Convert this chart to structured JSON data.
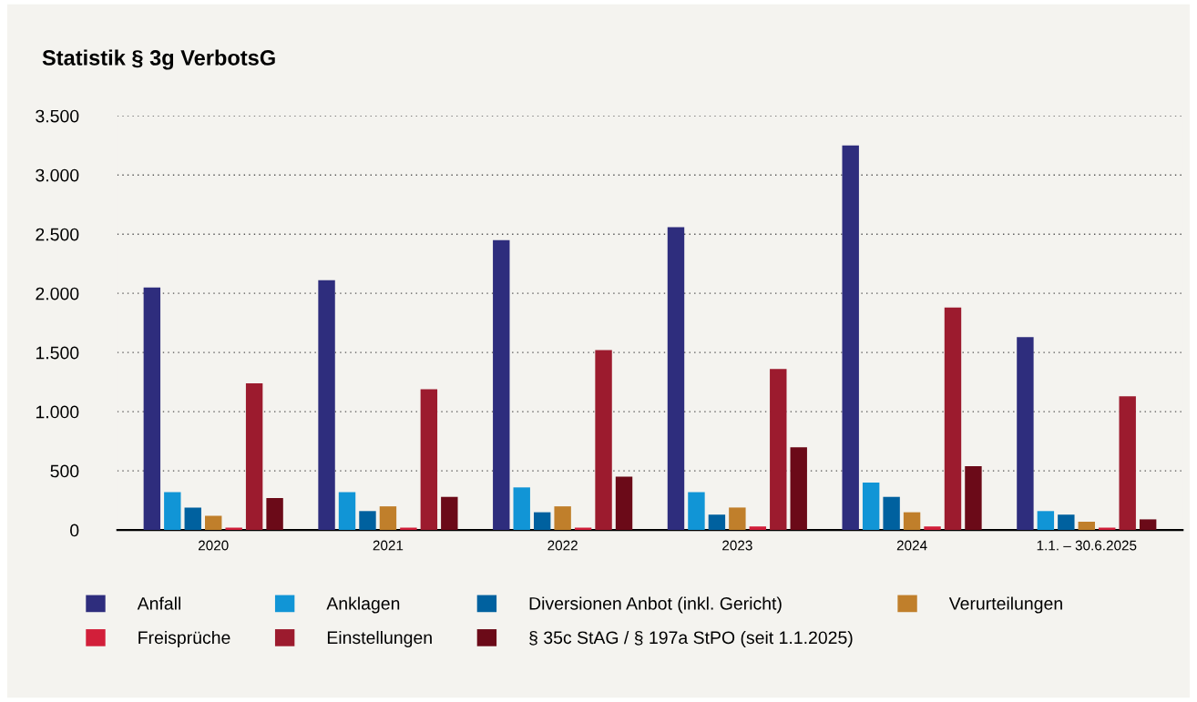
{
  "chart_data": {
    "type": "bar",
    "title": "Statistik § 3g VerbotsG",
    "categories": [
      "2020",
      "2021",
      "2022",
      "2023",
      "2024",
      "1.1. – 30.6.2025"
    ],
    "series": [
      {
        "name": "Anfall",
        "color": "#2e2d7d",
        "values": [
          2050,
          2110,
          2450,
          2560,
          3250,
          1630
        ]
      },
      {
        "name": "Anklagen",
        "color": "#1195d6",
        "values": [
          320,
          320,
          360,
          320,
          400,
          160
        ]
      },
      {
        "name": "Diversionen Anbot (inkl. Gericht)",
        "color": "#00619f",
        "values": [
          190,
          160,
          150,
          130,
          280,
          130
        ]
      },
      {
        "name": "Verurteilungen",
        "color": "#c07f2b",
        "values": [
          120,
          200,
          200,
          190,
          150,
          70
        ]
      },
      {
        "name": "Freisprüche",
        "color": "#d21f3a",
        "values": [
          20,
          20,
          20,
          30,
          30,
          20
        ]
      },
      {
        "name": "Einstellungen",
        "color": "#9c1b2e",
        "values": [
          1240,
          1190,
          1520,
          1360,
          1880,
          1130
        ]
      },
      {
        "name": "§ 35c StAG / § 197a StPO (seit 1.1.2025)",
        "color": "#6b0a18",
        "values": [
          270,
          280,
          450,
          700,
          540,
          90
        ]
      }
    ],
    "ylim": [
      0,
      3500
    ],
    "yticks": [
      {
        "value": 0,
        "label": "0"
      },
      {
        "value": 500,
        "label": "500"
      },
      {
        "value": 1000,
        "label": "1.000"
      },
      {
        "value": 1500,
        "label": "1.500"
      },
      {
        "value": 2000,
        "label": "2.000"
      },
      {
        "value": 2500,
        "label": "2.500"
      },
      {
        "value": 3000,
        "label": "3.000"
      },
      {
        "value": 3500,
        "label": "3.500"
      }
    ],
    "grid": "y",
    "legend": "bottom"
  }
}
